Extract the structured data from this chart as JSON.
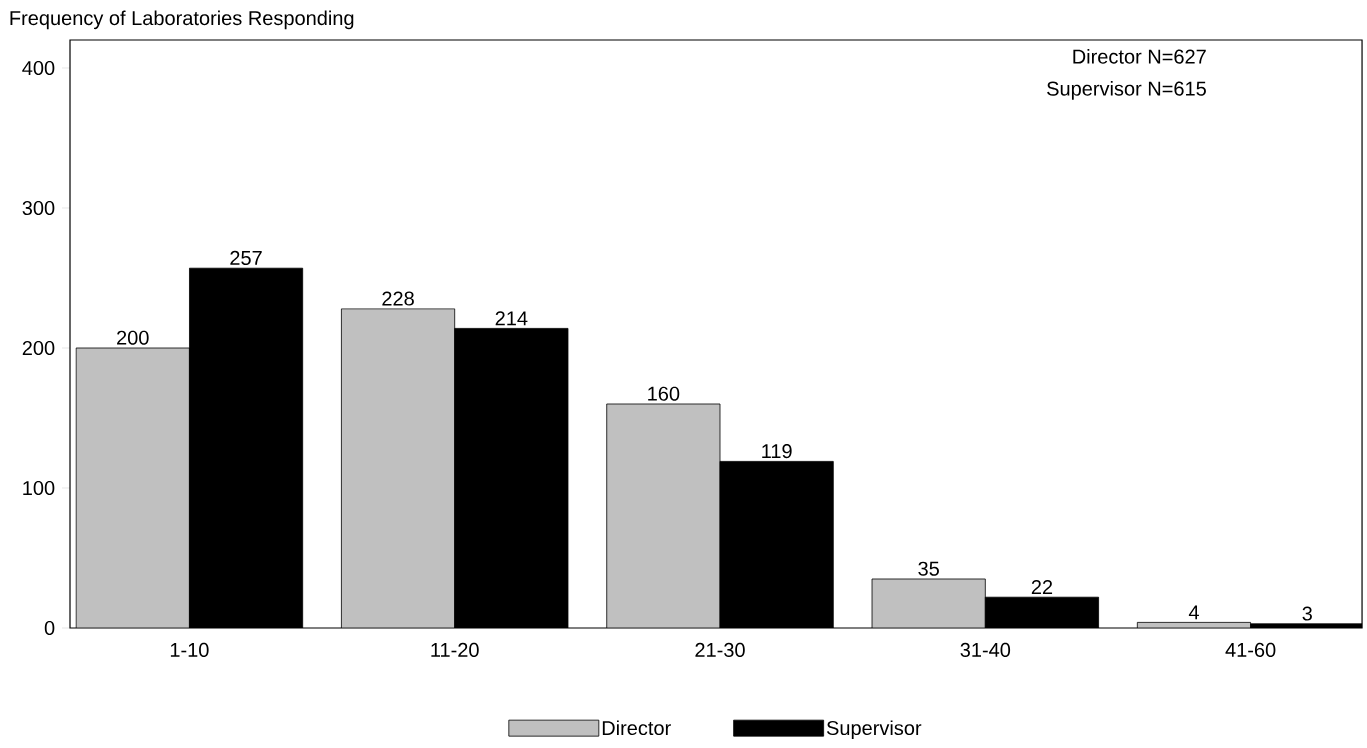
{
  "chart_data": {
    "type": "bar",
    "ylabel": "Frequency of Laboratories Responding",
    "categories": [
      "1-10",
      "11-20",
      "21-30",
      "31-40",
      "41-60"
    ],
    "series": [
      {
        "name": "Director",
        "color": "#c0c0c0",
        "values": [
          200,
          228,
          160,
          35,
          4
        ]
      },
      {
        "name": "Supervisor",
        "color": "#000000",
        "values": [
          257,
          214,
          119,
          22,
          3
        ]
      }
    ],
    "ylim": [
      0,
      420
    ],
    "yticks": [
      0,
      100,
      200,
      300,
      400
    ],
    "annotations": [
      "Director N=627",
      "Supervisor N=615"
    ],
    "data_labels": true,
    "legend": "bottom",
    "grid": false
  }
}
